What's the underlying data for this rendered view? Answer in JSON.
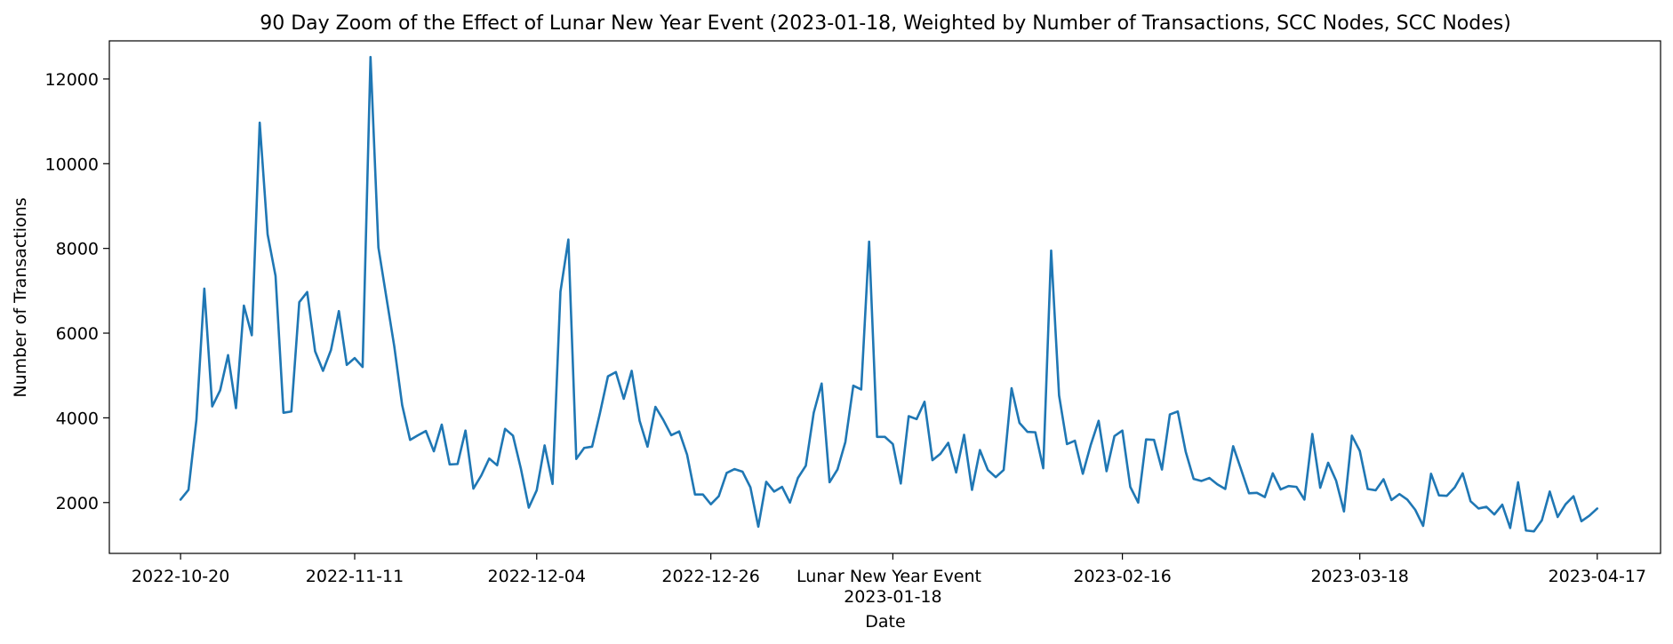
{
  "chart_data": {
    "type": "line",
    "title": "90 Day Zoom of the Effect of Lunar New Year Event (2023-01-18, Weighted by Number of Transactions, SCC Nodes, SCC Nodes)",
    "xlabel": "Date",
    "ylabel": "Number of Transactions",
    "x_start": "2022-10-20",
    "x_end": "2023-04-17",
    "xlim": [
      "2022-10-11",
      "2023-04-25"
    ],
    "ylim": [
      800,
      12900
    ],
    "grid": false,
    "legend": false,
    "color": "#1f77b4",
    "x_ticks": [
      {
        "date": "2022-10-20",
        "label": "2022-10-20"
      },
      {
        "date": "2022-11-11",
        "label": "2022-11-11"
      },
      {
        "date": "2022-12-04",
        "label": "2022-12-04"
      },
      {
        "date": "2022-12-26",
        "label": "2022-12-26"
      },
      {
        "date": "2023-01-18",
        "label": "2023-01-18"
      },
      {
        "date": "2023-02-16",
        "label": "2023-02-16"
      },
      {
        "date": "2023-03-18",
        "label": "2023-03-18"
      },
      {
        "date": "2023-04-17",
        "label": "2023-04-17"
      }
    ],
    "y_ticks": [
      2000,
      4000,
      6000,
      8000,
      10000,
      12000
    ],
    "event_label": "Lunar New Year Event",
    "event_date": "2023-01-18",
    "values": [
      2070,
      2300,
      3950,
      7050,
      4270,
      4650,
      5480,
      4230,
      6650,
      5950,
      10970,
      8330,
      7350,
      4120,
      4150,
      6730,
      6970,
      5570,
      5110,
      5600,
      6520,
      5250,
      5410,
      5200,
      12520,
      8020,
      6850,
      5690,
      4300,
      3480,
      3590,
      3690,
      3210,
      3840,
      2900,
      2910,
      3700,
      2330,
      2640,
      3040,
      2880,
      3740,
      3580,
      2800,
      1880,
      2290,
      3350,
      2440,
      6980,
      8210,
      3030,
      3290,
      3320,
      4120,
      4980,
      5080,
      4450,
      5110,
      3930,
      3320,
      4260,
      3950,
      3590,
      3680,
      3130,
      2190,
      2190,
      1960,
      2150,
      2700,
      2790,
      2730,
      2360,
      1430,
      2490,
      2260,
      2370,
      2000,
      2580,
      2870,
      4120,
      4810,
      2480,
      2780,
      3430,
      4760,
      4670,
      8160,
      3550,
      3550,
      3380,
      2450,
      4040,
      3970,
      4380,
      3000,
      3150,
      3410,
      2710,
      3600,
      2300,
      3240,
      2770,
      2600,
      2770,
      4700,
      3880,
      3670,
      3660,
      2810,
      7950,
      4530,
      3380,
      3460,
      2680,
      3360,
      3930,
      2740,
      3570,
      3700,
      2370,
      2000,
      3490,
      3480,
      2780,
      4080,
      4150,
      3200,
      2560,
      2510,
      2580,
      2430,
      2320,
      3330,
      2780,
      2220,
      2230,
      2130,
      2690,
      2310,
      2390,
      2370,
      2070,
      3620,
      2350,
      2940,
      2520,
      1790,
      3580,
      3220,
      2320,
      2290,
      2550,
      2060,
      2200,
      2070,
      1830,
      1450,
      2680,
      2170,
      2160,
      2360,
      2690,
      2030,
      1860,
      1900,
      1720,
      1950,
      1400,
      2480,
      1340,
      1320,
      1580,
      2260,
      1660,
      1960,
      2150,
      1560,
      1690,
      1860
    ]
  }
}
